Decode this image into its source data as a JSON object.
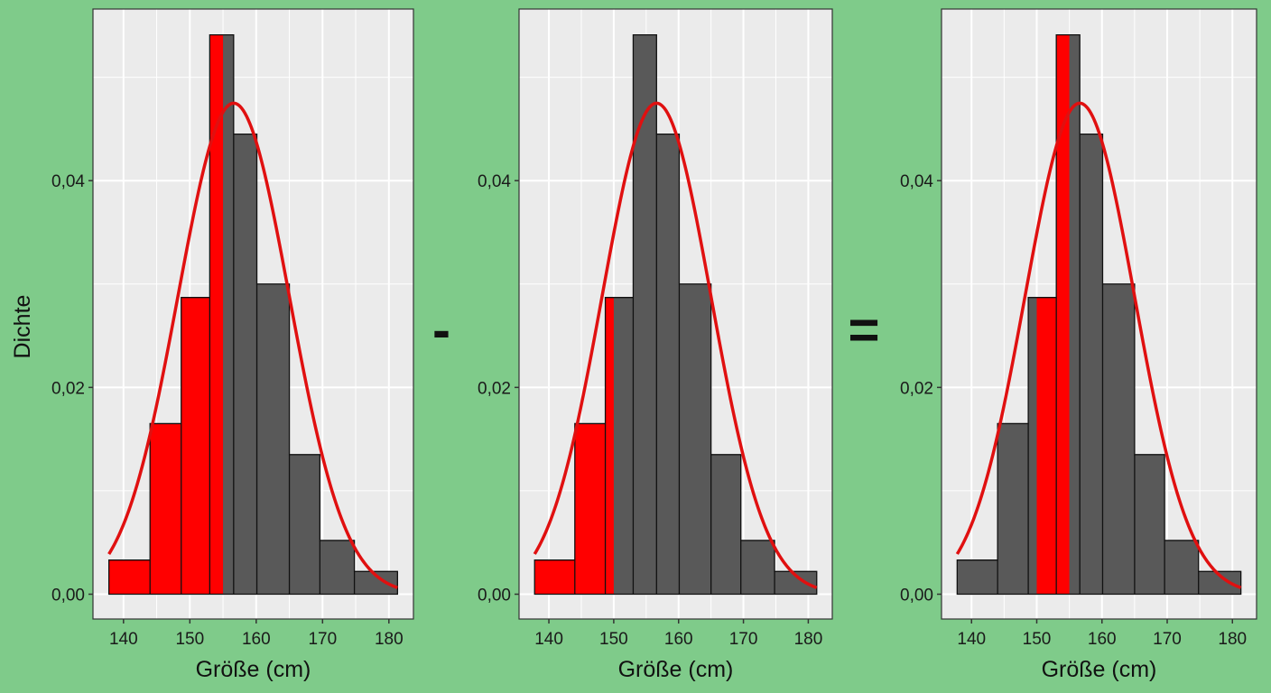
{
  "background_color": "#7fcb8a",
  "operators": [
    "-",
    "="
  ],
  "chart_data": [
    {
      "type": "bar",
      "subtype": "histogram-with-normal-density",
      "xlabel": "Größe (cm)",
      "ylabel": "Dichte",
      "x_ticks": [
        "140",
        "150",
        "160",
        "170",
        "180"
      ],
      "y_ticks": [
        "0,00",
        "0,02",
        "0,04"
      ],
      "xlim": [
        135.4,
        183.7
      ],
      "ylim": [
        -0.0024,
        0.0566
      ],
      "grid": true,
      "bin_edges": [
        137.8,
        144.0,
        148.7,
        153.0,
        156.6,
        160.1,
        165.0,
        169.6,
        174.8,
        181.3
      ],
      "densities": [
        0.0033,
        0.0165,
        0.0287,
        0.0541,
        0.0445,
        0.03,
        0.0135,
        0.0052,
        0.0022
      ],
      "normal_curve": {
        "mean": 156.6,
        "sd": 8.4,
        "color": "#e01010"
      },
      "shaded_range": [
        137.8,
        155.0
      ],
      "colors": {
        "bar": "#595959",
        "shade": "#ff0000"
      }
    },
    {
      "type": "bar",
      "subtype": "histogram-with-normal-density",
      "xlabel": "Größe (cm)",
      "ylabel": "",
      "x_ticks": [
        "140",
        "150",
        "160",
        "170",
        "180"
      ],
      "y_ticks": [
        "0,00",
        "0,02",
        "0,04"
      ],
      "xlim": [
        135.4,
        183.7
      ],
      "ylim": [
        -0.0024,
        0.0566
      ],
      "grid": true,
      "bin_edges": [
        137.8,
        144.0,
        148.7,
        153.0,
        156.6,
        160.1,
        165.0,
        169.6,
        174.8,
        181.3
      ],
      "densities": [
        0.0033,
        0.0165,
        0.0287,
        0.0541,
        0.0445,
        0.03,
        0.0135,
        0.0052,
        0.0022
      ],
      "normal_curve": {
        "mean": 156.6,
        "sd": 8.4,
        "color": "#e01010"
      },
      "shaded_range": [
        137.8,
        150.0
      ],
      "colors": {
        "bar": "#595959",
        "shade": "#ff0000"
      }
    },
    {
      "type": "bar",
      "subtype": "histogram-with-normal-density",
      "xlabel": "Größe (cm)",
      "ylabel": "",
      "x_ticks": [
        "140",
        "150",
        "160",
        "170",
        "180"
      ],
      "y_ticks": [
        "0,00",
        "0,02",
        "0,04"
      ],
      "xlim": [
        135.4,
        183.7
      ],
      "ylim": [
        -0.0024,
        0.0566
      ],
      "grid": true,
      "bin_edges": [
        137.8,
        144.0,
        148.7,
        153.0,
        156.6,
        160.1,
        165.0,
        169.6,
        174.8,
        181.3
      ],
      "densities": [
        0.0033,
        0.0165,
        0.0287,
        0.0541,
        0.0445,
        0.03,
        0.0135,
        0.0052,
        0.0022
      ],
      "normal_curve": {
        "mean": 156.6,
        "sd": 8.4,
        "color": "#e01010"
      },
      "shaded_range": [
        150.0,
        155.0
      ],
      "colors": {
        "bar": "#595959",
        "shade": "#ff0000"
      }
    }
  ]
}
